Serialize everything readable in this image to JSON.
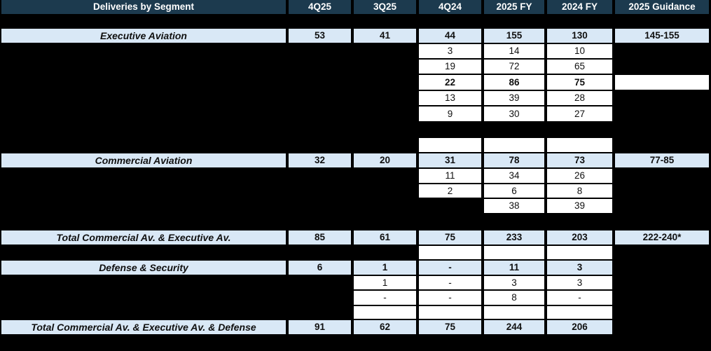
{
  "colors": {
    "header_bg": "#1c3a4e",
    "header_text": "#ffffff",
    "section_bg": "#d9e8f6",
    "cell_bg": "#ffffff",
    "text": "#101010",
    "background": "#000000"
  },
  "table": {
    "title": "Deliveries by Segment",
    "rows": [
      {
        "style": "header",
        "label": "Deliveries by Segment",
        "values": [
          "4Q25",
          "3Q25",
          "4Q24",
          "2025 FY",
          "2024 FY",
          "2025 Guidance"
        ]
      },
      {
        "style": "gap",
        "label": null,
        "values": [
          null,
          null,
          null,
          null,
          null,
          null
        ]
      },
      {
        "style": "section",
        "label": "Executive Aviation",
        "values": [
          "53",
          "41",
          "44",
          "155",
          "130",
          "145-155"
        ]
      },
      {
        "style": "data",
        "label": null,
        "values": [
          null,
          null,
          "3",
          "14",
          "10",
          null
        ]
      },
      {
        "style": "data",
        "label": null,
        "values": [
          null,
          null,
          "19",
          "72",
          "65",
          null
        ]
      },
      {
        "style": "data-bold",
        "label": null,
        "values": [
          null,
          null,
          "22",
          "86",
          "75",
          ""
        ]
      },
      {
        "style": "data",
        "label": null,
        "values": [
          null,
          null,
          "13",
          "39",
          "28",
          null
        ]
      },
      {
        "style": "data",
        "label": null,
        "values": [
          null,
          null,
          "9",
          "30",
          "27",
          null
        ]
      },
      {
        "style": "gap",
        "label": null,
        "values": [
          null,
          null,
          null,
          null,
          null,
          null
        ]
      },
      {
        "style": "data",
        "label": null,
        "values": [
          null,
          null,
          "",
          "",
          "",
          null
        ]
      },
      {
        "style": "section",
        "label": "Commercial Aviation",
        "values": [
          "32",
          "20",
          "31",
          "78",
          "73",
          "77-85"
        ]
      },
      {
        "style": "data",
        "label": null,
        "values": [
          null,
          null,
          "11",
          "34",
          "26",
          null
        ]
      },
      {
        "style": "data",
        "label": null,
        "values": [
          null,
          null,
          "2",
          "6",
          "8",
          null
        ]
      },
      {
        "style": "data",
        "label": null,
        "values": [
          null,
          null,
          null,
          "38",
          "39",
          null
        ]
      },
      {
        "style": "gap",
        "label": null,
        "values": [
          null,
          null,
          null,
          null,
          null,
          null
        ]
      },
      {
        "style": "section",
        "label": "Total Commercial Av. & Executive Av.",
        "values": [
          "85",
          "61",
          "75",
          "233",
          "203",
          "222-240*"
        ]
      },
      {
        "style": "data",
        "label": null,
        "values": [
          null,
          null,
          "",
          "",
          "",
          null
        ]
      },
      {
        "style": "section",
        "label": "Defense & Security",
        "values": [
          "6",
          "1",
          "-",
          "11",
          "3",
          null
        ]
      },
      {
        "style": "data",
        "label": null,
        "values": [
          null,
          "1",
          "-",
          "3",
          "3",
          null
        ]
      },
      {
        "style": "data",
        "label": null,
        "values": [
          null,
          "-",
          "-",
          "8",
          "-",
          null
        ]
      },
      {
        "style": "data",
        "label": null,
        "values": [
          null,
          "",
          "",
          "",
          "",
          null
        ]
      },
      {
        "style": "section",
        "label": "Total Commercial Av. & Executive Av. & Defense",
        "values": [
          "91",
          "62",
          "75",
          "244",
          "206",
          null
        ]
      },
      {
        "style": "gap",
        "label": null,
        "values": [
          null,
          null,
          null,
          null,
          null,
          null
        ]
      }
    ]
  },
  "chart_data": {
    "type": "table",
    "title": "Deliveries by Segment",
    "columns": [
      "Deliveries by Segment",
      "4Q25",
      "3Q25",
      "4Q24",
      "2025 FY",
      "2024 FY",
      "2025 Guidance"
    ],
    "rows": [
      [
        "Executive Aviation",
        "53",
        "41",
        "44",
        "155",
        "130",
        "145-155"
      ],
      [
        "",
        "",
        "",
        "3",
        "14",
        "10",
        ""
      ],
      [
        "",
        "",
        "",
        "19",
        "72",
        "65",
        ""
      ],
      [
        "",
        "",
        "",
        "22",
        "86",
        "75",
        ""
      ],
      [
        "",
        "",
        "",
        "13",
        "39",
        "28",
        ""
      ],
      [
        "",
        "",
        "",
        "9",
        "30",
        "27",
        ""
      ],
      [
        "Commercial Aviation",
        "32",
        "20",
        "31",
        "78",
        "73",
        "77-85"
      ],
      [
        "",
        "",
        "",
        "11",
        "34",
        "26",
        ""
      ],
      [
        "",
        "",
        "",
        "2",
        "6",
        "8",
        ""
      ],
      [
        "",
        "",
        "",
        "",
        "38",
        "39",
        ""
      ],
      [
        "Total Commercial Av. & Executive Av.",
        "85",
        "61",
        "75",
        "233",
        "203",
        "222-240*"
      ],
      [
        "Defense & Security",
        "6",
        "1",
        "-",
        "11",
        "3",
        ""
      ],
      [
        "",
        "",
        "1",
        "-",
        "3",
        "3",
        ""
      ],
      [
        "",
        "",
        "-",
        "-",
        "8",
        "-",
        ""
      ],
      [
        "Total Commercial Av. & Executive Av. & Defense",
        "91",
        "62",
        "75",
        "244",
        "206",
        ""
      ]
    ],
    "layout_hints": {
      "highlighted_row_labels": [
        "Executive Aviation",
        "Commercial Aviation",
        "Total Commercial Av. & Executive Av.",
        "Defense & Security",
        "Total Commercial Av. & Executive Av. & Defense"
      ],
      "bold_data_rows": [
        [
          "22",
          "86",
          "75"
        ]
      ],
      "redacted_background": true
    }
  }
}
